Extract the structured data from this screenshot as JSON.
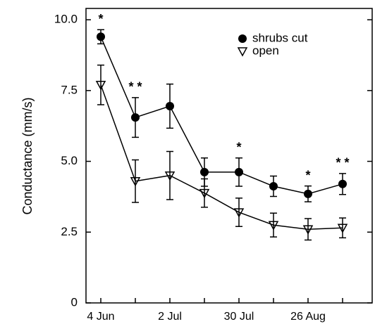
{
  "chart_data": {
    "type": "line",
    "ylabel": "Conductance (mm/s)",
    "categories": [
      "4 Jun",
      null,
      "2 Jul",
      null,
      "30 Jul",
      null,
      "26 Aug",
      null
    ],
    "series": [
      {
        "name": "shrubs cut",
        "color": "#000000",
        "marker": "circle",
        "values": [
          9.4,
          6.55,
          6.95,
          4.62,
          4.62,
          4.12,
          3.85,
          4.2
        ],
        "errors": [
          0.25,
          0.7,
          0.78,
          0.5,
          0.5,
          0.36,
          0.28,
          0.37
        ]
      },
      {
        "name": "open",
        "color": "#000000",
        "marker": "triangle-down",
        "values": [
          7.7,
          4.3,
          4.5,
          3.88,
          3.2,
          2.75,
          2.6,
          2.65
        ],
        "errors": [
          0.7,
          0.75,
          0.85,
          0.5,
          0.5,
          0.42,
          0.38,
          0.35
        ]
      }
    ],
    "significance": [
      "*",
      "* *",
      null,
      null,
      "*",
      null,
      "*",
      "* *"
    ],
    "ylim": [
      0,
      10.4
    ],
    "yticks": [
      0,
      2.5,
      {
        "value": 5,
        "label": "5.0"
      },
      7.5,
      {
        "value": 10,
        "label": "10.0"
      }
    ],
    "legend": "upper right"
  }
}
